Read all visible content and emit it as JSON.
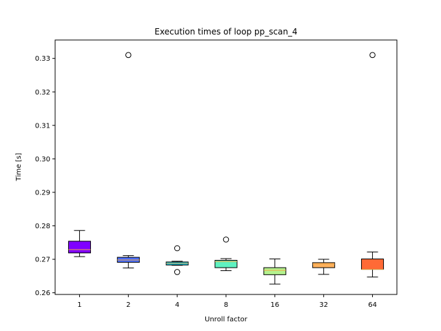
{
  "chart_data": {
    "type": "box",
    "title": "Execution times of loop pp_scan_4",
    "xlabel": "Unroll factor",
    "ylabel": "Time [s]",
    "ylim": [
      0.2595,
      0.3355
    ],
    "yticks": [
      0.26,
      0.27,
      0.28,
      0.29,
      0.3,
      0.31,
      0.32,
      0.33
    ],
    "ytick_labels": [
      "0.26",
      "0.27",
      "0.28",
      "0.29",
      "0.30",
      "0.31",
      "0.32",
      "0.33"
    ],
    "grid": false,
    "categories": [
      "1",
      "2",
      "4",
      "8",
      "16",
      "32",
      "64"
    ],
    "boxes": [
      {
        "category": "1",
        "whisker_low": 0.2708,
        "q1": 0.2719,
        "median": 0.2729,
        "q3": 0.2754,
        "whisker_high": 0.2786,
        "fliers": [],
        "color": "#8000ff"
      },
      {
        "category": "2",
        "whisker_low": 0.2674,
        "q1": 0.2691,
        "median": 0.2698,
        "q3": 0.2706,
        "whisker_high": 0.2711,
        "fliers": [
          0.331
        ],
        "color": "#4a6ef8"
      },
      {
        "category": "4",
        "whisker_low": 0.2682,
        "q1": 0.2683,
        "median": 0.2688,
        "q3": 0.2692,
        "whisker_high": 0.2694,
        "fliers": [
          0.2733,
          0.2662
        ],
        "color": "#0fc4e4"
      },
      {
        "category": "8",
        "whisker_low": 0.2666,
        "q1": 0.2675,
        "median": 0.2693,
        "q3": 0.2697,
        "whisker_high": 0.2702,
        "fliers": [
          0.2759
        ],
        "color": "#5ef2c1"
      },
      {
        "category": "16",
        "whisker_low": 0.2626,
        "q1": 0.2654,
        "median": 0.2667,
        "q3": 0.2675,
        "whisker_high": 0.2701,
        "fliers": [],
        "color": "#b3f28f"
      },
      {
        "category": "32",
        "whisker_low": 0.2655,
        "q1": 0.2675,
        "median": 0.2686,
        "q3": 0.269,
        "whisker_high": 0.27,
        "fliers": [],
        "color": "#ffb25e"
      },
      {
        "category": "64",
        "whisker_low": 0.2647,
        "q1": 0.267,
        "median": 0.267,
        "q3": 0.2701,
        "whisker_high": 0.2722,
        "fliers": [
          0.331
        ],
        "color": "#ff6a36"
      }
    ]
  }
}
